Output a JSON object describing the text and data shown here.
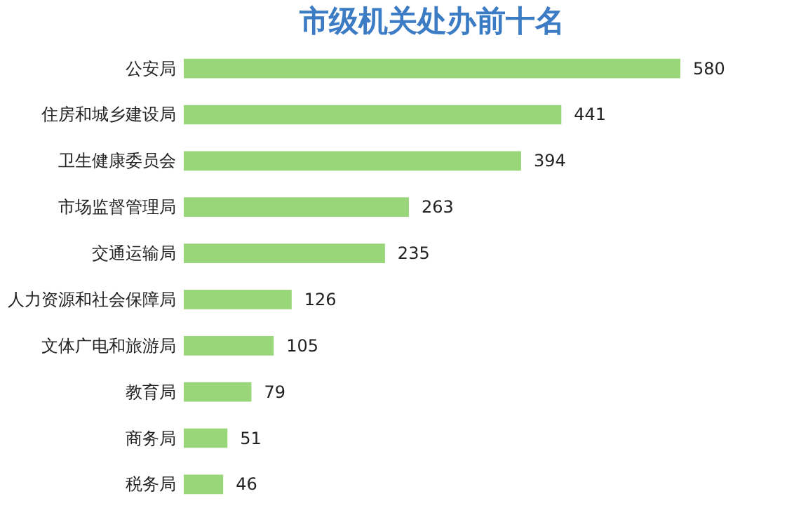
{
  "chart_data": {
    "type": "bar",
    "orientation": "horizontal",
    "title": "市级机关处办前十名",
    "categories": [
      "公安局",
      "住房和城乡建设局",
      "卫生健康委员会",
      "市场监督管理局",
      "交通运输局",
      "人力资源和社会保障局",
      "文体广电和旅游局",
      "教育局",
      "商务局",
      "税务局"
    ],
    "values": [
      580,
      441,
      394,
      263,
      235,
      126,
      105,
      79,
      51,
      46
    ],
    "color": "#99d67a",
    "data_labels": true
  }
}
